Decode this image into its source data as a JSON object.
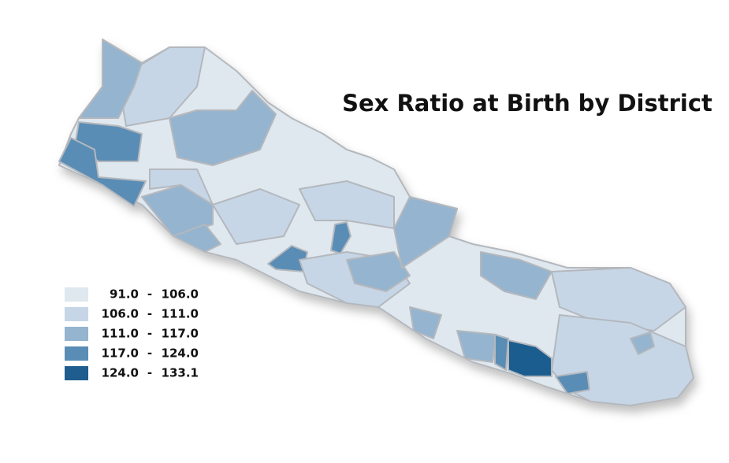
{
  "title": "Sex Ratio at Birth by District",
  "legend": {
    "separator": "-",
    "classes": [
      {
        "color": "#dfe7ef",
        "min": {
          "value": 91,
          "label": "91.0"
        },
        "max": {
          "value": 106,
          "label": "106.0"
        }
      },
      {
        "color": "#c6d6e6",
        "min": {
          "value": 106,
          "label": "106.0"
        },
        "max": {
          "value": 111,
          "label": "111.0"
        }
      },
      {
        "color": "#95b4cf",
        "min": {
          "value": 111,
          "label": "111.0"
        },
        "max": {
          "value": 117,
          "label": "117.0"
        }
      },
      {
        "color": "#5a8db5",
        "min": {
          "value": 117,
          "label": "117.0"
        },
        "max": {
          "value": 124,
          "label": "124.0"
        }
      },
      {
        "color": "#1f5d8f",
        "min": {
          "value": 124,
          "label": "124.0"
        },
        "max": 133.1
      }
    ]
  }
}
